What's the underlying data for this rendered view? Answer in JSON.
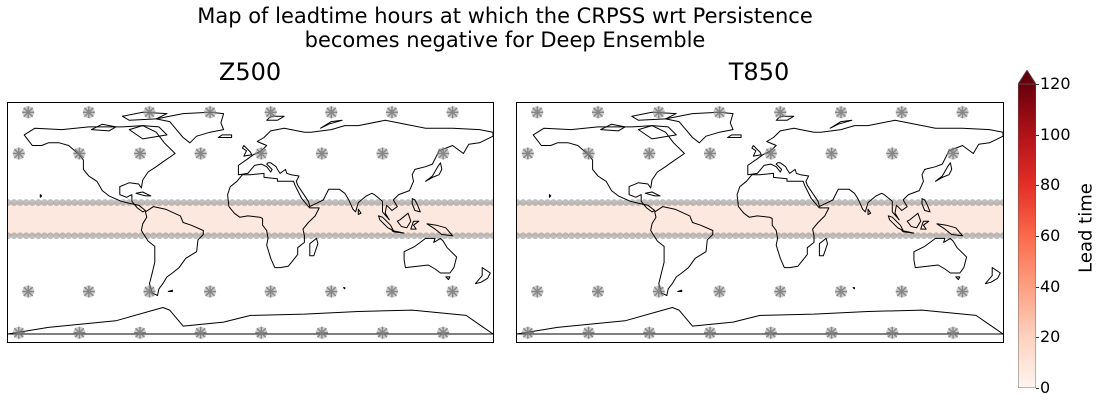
{
  "figure": {
    "title_line1": "Map of leadtime hours at which the CRPSS wrt Persistence",
    "title_line2": "becomes negative for Deep Ensemble"
  },
  "chart_data": [
    {
      "type": "heatmap",
      "title": "Z500",
      "projection": "equirectangular world map",
      "lon_range": [
        -180,
        180
      ],
      "lat_range": [
        -90,
        90
      ],
      "shaded_band": {
        "lat_range": [
          -10,
          15
        ],
        "lead_time": 10
      },
      "stipple_rows_lat": [
        83,
        52,
        -52,
        -83
      ],
      "band_edges_lat": [
        15,
        -10
      ],
      "colorbar": {
        "label": "Lead time",
        "min": 0,
        "max": 120,
        "ticks": [
          0,
          20,
          40,
          60,
          80,
          100,
          120
        ],
        "extend": "max"
      }
    },
    {
      "type": "heatmap",
      "title": "T850",
      "projection": "equirectangular world map",
      "lon_range": [
        -180,
        180
      ],
      "lat_range": [
        -90,
        90
      ],
      "shaded_band": {
        "lat_range": [
          -10,
          15
        ],
        "lead_time": 10
      },
      "stipple_rows_lat": [
        83,
        52,
        -52,
        -83
      ],
      "band_edges_lat": [
        15,
        -10
      ],
      "colorbar": {
        "label": "Lead time",
        "min": 0,
        "max": 120,
        "ticks": [
          0,
          20,
          40,
          60,
          80,
          100,
          120
        ],
        "extend": "max"
      }
    }
  ],
  "colors": {
    "band_fill": "#fde8df",
    "stipple": "#8c8c8c",
    "coast": "#000000",
    "cmap": [
      "#fff5f0",
      "#fdd2bf",
      "#fc9f81",
      "#fb6a4a",
      "#e32f27",
      "#b11218",
      "#67000d"
    ]
  }
}
